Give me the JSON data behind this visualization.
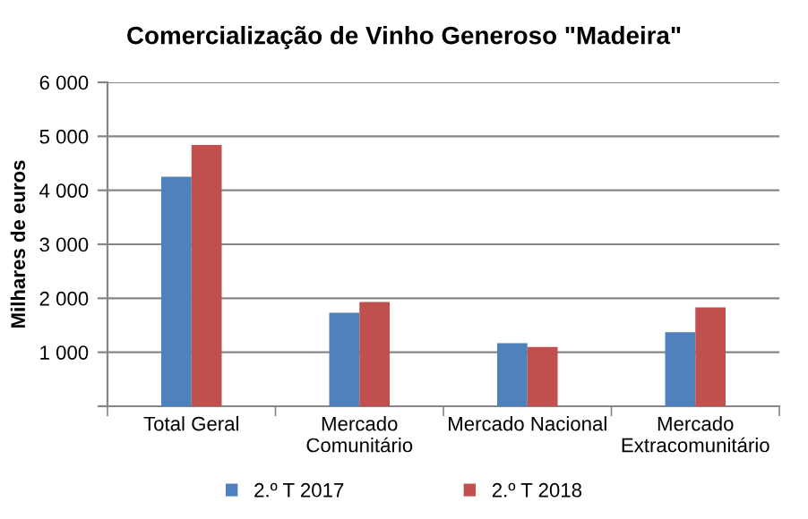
{
  "chart_data": {
    "type": "bar",
    "title": "Comercialização de Vinho Generoso \"Madeira\"",
    "ylabel": "Milhares de euros",
    "categories": [
      "Total Geral",
      "Mercado\nComunitário",
      "Mercado Nacional",
      "Mercado\nExtracomunitário"
    ],
    "series": [
      {
        "name": "2.º T 2017",
        "color": "#4f81bd",
        "values": [
          4250,
          1730,
          1170,
          1370
        ]
      },
      {
        "name": "2.º T 2018",
        "color": "#c0504d",
        "values": [
          4840,
          1930,
          1100,
          1830
        ]
      }
    ],
    "ylim": [
      0,
      6000
    ],
    "yticks": [
      {
        "value": 0,
        "label": null
      },
      {
        "value": 1000,
        "label": "1 000"
      },
      {
        "value": 2000,
        "label": "2 000"
      },
      {
        "value": 3000,
        "label": "3 000"
      },
      {
        "value": 4000,
        "label": "4 000"
      },
      {
        "value": 5000,
        "label": "5 000"
      },
      {
        "value": 6000,
        "label": "6 000"
      }
    ],
    "grid": "y",
    "legend": "bottom"
  }
}
